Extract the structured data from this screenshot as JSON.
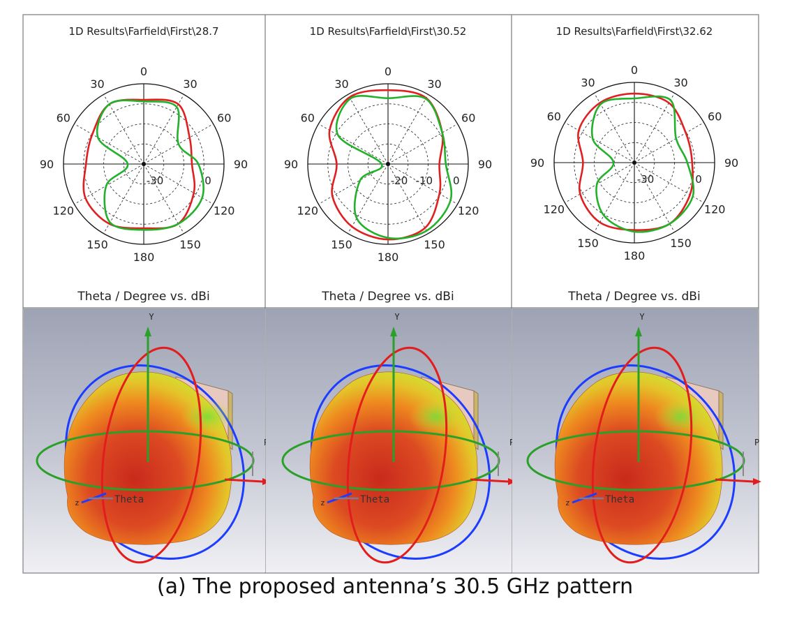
{
  "caption": "(a) The proposed antenna’s 30.5 GHz pattern",
  "colors": {
    "series_red": "#e02020",
    "series_green": "#22b12a",
    "axis_x": "#e21d1d",
    "axis_y": "#2aa02a",
    "axis_z": "#1c3cff",
    "pattern_inner": "#d8341f",
    "pattern_mid": "#f08a1e",
    "pattern_outer": "#e7dc2a",
    "panel_bg_top": "#9ea3b4",
    "panel_bg_bottom": "#f0f0f4"
  },
  "chart_data": [
    {
      "type": "polar",
      "title": "1D Results\\Farfield\\First\\28.7",
      "xlabel": "Theta / Degree vs. dBi",
      "angle_labels": [
        "0",
        "30",
        "60",
        "90",
        "120",
        "150",
        "180",
        "150",
        "120",
        "90",
        "60",
        "30"
      ],
      "radial_labels": [
        "-30",
        "0"
      ],
      "series": [
        {
          "theta_deg": [
            0,
            30,
            60,
            90,
            120,
            150,
            180,
            210,
            240,
            270,
            300,
            330
          ],
          "values": [
            0.8,
            0.86,
            0.66,
            0.6,
            0.72,
            0.86,
            0.8,
            0.86,
            0.84,
            0.72,
            0.74,
            0.86
          ]
        },
        {
          "theta_deg": [
            0,
            30,
            60,
            90,
            120,
            150,
            180,
            210,
            240,
            270,
            300,
            330
          ],
          "values": [
            0.78,
            0.82,
            0.5,
            0.68,
            0.84,
            0.86,
            0.82,
            0.84,
            0.54,
            0.2,
            0.66,
            0.86
          ]
        }
      ]
    },
    {
      "type": "polar",
      "title": "1D Results\\Farfield\\First\\30.52",
      "xlabel": "Theta / Degree vs. dBi",
      "angle_labels": [
        "0",
        "30",
        "60",
        "90",
        "120",
        "150",
        "180",
        "150",
        "120",
        "90",
        "60",
        "30"
      ],
      "radial_labels": [
        "-20",
        "-10",
        "0"
      ],
      "series": [
        {
          "theta_deg": [
            0,
            30,
            60,
            90,
            120,
            150,
            180,
            210,
            240,
            270,
            300,
            330
          ],
          "values": [
            0.92,
            0.95,
            0.78,
            0.64,
            0.74,
            0.92,
            0.94,
            0.9,
            0.8,
            0.64,
            0.84,
            0.96
          ]
        },
        {
          "theta_deg": [
            0,
            30,
            60,
            90,
            120,
            150,
            180,
            210,
            240,
            270,
            300,
            330
          ],
          "values": [
            0.82,
            0.94,
            0.78,
            0.72,
            0.9,
            0.96,
            0.92,
            0.78,
            0.4,
            0.08,
            0.72,
            0.94
          ]
        }
      ]
    },
    {
      "type": "polar",
      "title": "1D Results\\Farfield\\First\\32.62",
      "xlabel": "Theta / Degree vs. dBi",
      "angle_labels": [
        "0",
        "30",
        "60",
        "90",
        "120",
        "150",
        "180",
        "150",
        "120",
        "90",
        "60",
        "30"
      ],
      "radial_labels": [
        "-30",
        "0"
      ],
      "series": [
        {
          "theta_deg": [
            0,
            30,
            60,
            90,
            120,
            150,
            180,
            210,
            240,
            270,
            300,
            330
          ],
          "values": [
            0.86,
            0.86,
            0.74,
            0.72,
            0.8,
            0.88,
            0.84,
            0.86,
            0.78,
            0.64,
            0.8,
            0.86
          ]
        },
        {
          "theta_deg": [
            0,
            30,
            60,
            90,
            120,
            150,
            180,
            210,
            240,
            270,
            300,
            330
          ],
          "values": [
            0.8,
            0.9,
            0.6,
            0.66,
            0.84,
            0.88,
            0.86,
            0.76,
            0.54,
            0.26,
            0.6,
            0.84
          ]
        }
      ]
    }
  ],
  "pattern_panels": [
    {
      "axis_y_label": "Y",
      "axis_theta_label": "Theta",
      "axis_z_label": "z",
      "axis_phi_label": "P"
    },
    {
      "axis_y_label": "Y",
      "axis_theta_label": "Theta",
      "axis_z_label": "z",
      "axis_phi_label": "P"
    },
    {
      "axis_y_label": "Y",
      "axis_theta_label": "Theta",
      "axis_z_label": "z",
      "axis_phi_label": "P"
    }
  ]
}
